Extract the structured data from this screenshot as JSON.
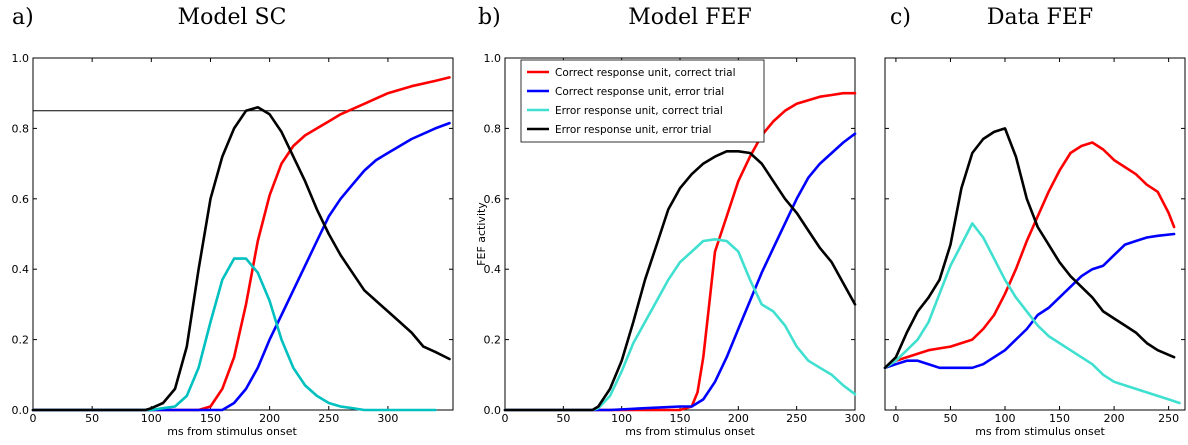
{
  "chart_data": [
    {
      "type": "line",
      "panel_letter": "a)",
      "title": "Model SC",
      "xlabel": "ms from stimulus onset",
      "ylabel": "",
      "xlim": [
        0,
        355
      ],
      "ylim": [
        0,
        1.0
      ],
      "xticks": [
        0,
        50,
        100,
        150,
        200,
        250,
        300
      ],
      "yticks": [
        0.0,
        0.2,
        0.4,
        0.6,
        0.8,
        1.0
      ],
      "ytick_labels": [
        "0.0",
        "0.2",
        "0.4",
        "0.6",
        "0.8",
        "1.0"
      ],
      "hline": 0.85,
      "series": [
        {
          "color": "#ff0000",
          "x": [
            0,
            140,
            150,
            160,
            170,
            180,
            190,
            200,
            210,
            220,
            230,
            240,
            250,
            260,
            280,
            300,
            320,
            340,
            352
          ],
          "y": [
            0,
            0,
            0.01,
            0.06,
            0.15,
            0.3,
            0.48,
            0.61,
            0.7,
            0.75,
            0.78,
            0.8,
            0.82,
            0.84,
            0.87,
            0.9,
            0.92,
            0.935,
            0.945
          ]
        },
        {
          "color": "#0000ff",
          "x": [
            0,
            160,
            170,
            180,
            190,
            200,
            210,
            220,
            230,
            240,
            250,
            260,
            270,
            280,
            290,
            300,
            320,
            340,
            352
          ],
          "y": [
            0,
            0,
            0.02,
            0.06,
            0.12,
            0.2,
            0.27,
            0.34,
            0.41,
            0.48,
            0.55,
            0.6,
            0.64,
            0.68,
            0.71,
            0.73,
            0.77,
            0.8,
            0.815
          ]
        },
        {
          "color": "#00c0c0",
          "x": [
            0,
            100,
            110,
            120,
            130,
            140,
            150,
            160,
            170,
            180,
            190,
            200,
            210,
            220,
            230,
            240,
            250,
            260,
            270,
            280,
            340
          ],
          "y": [
            0,
            0,
            0.005,
            0.01,
            0.04,
            0.12,
            0.25,
            0.37,
            0.43,
            0.43,
            0.39,
            0.31,
            0.2,
            0.12,
            0.07,
            0.04,
            0.02,
            0.01,
            0.005,
            0,
            0
          ]
        },
        {
          "color": "#000000",
          "x": [
            0,
            95,
            100,
            110,
            120,
            130,
            140,
            150,
            160,
            170,
            180,
            190,
            200,
            210,
            220,
            230,
            240,
            250,
            260,
            270,
            280,
            290,
            300,
            310,
            320,
            330,
            340,
            352
          ],
          "y": [
            0,
            0,
            0.005,
            0.02,
            0.06,
            0.18,
            0.4,
            0.6,
            0.72,
            0.8,
            0.85,
            0.86,
            0.84,
            0.79,
            0.72,
            0.65,
            0.57,
            0.5,
            0.44,
            0.39,
            0.34,
            0.31,
            0.28,
            0.25,
            0.22,
            0.18,
            0.165,
            0.145
          ]
        }
      ]
    },
    {
      "type": "line",
      "panel_letter": "b)",
      "title": "Model FEF",
      "xlabel": "ms from stimulus onset",
      "ylabel": "FEF activity",
      "xlim": [
        0,
        300
      ],
      "ylim": [
        0,
        1.0
      ],
      "xticks": [
        0,
        50,
        100,
        150,
        200,
        250,
        300
      ],
      "yticks": [
        0.0,
        0.2,
        0.4,
        0.6,
        0.8,
        1.0
      ],
      "ytick_labels": [
        "0.0",
        "0.2",
        "0.4",
        "0.6",
        "0.8",
        "1.0"
      ],
      "legend_position": "top-left",
      "series": [
        {
          "name": "Correct response unit, correct trial",
          "color": "#ff0000",
          "x": [
            0,
            150,
            160,
            165,
            170,
            175,
            180,
            190,
            200,
            210,
            220,
            230,
            240,
            250,
            260,
            270,
            280,
            290,
            300
          ],
          "y": [
            0,
            0,
            0.01,
            0.05,
            0.15,
            0.3,
            0.45,
            0.55,
            0.65,
            0.72,
            0.78,
            0.82,
            0.85,
            0.87,
            0.88,
            0.89,
            0.895,
            0.9,
            0.9
          ]
        },
        {
          "name": "Correct response unit, error trial",
          "color": "#0000ff",
          "x": [
            0,
            90,
            120,
            150,
            160,
            170,
            180,
            190,
            200,
            210,
            220,
            230,
            240,
            250,
            260,
            270,
            280,
            290,
            300
          ],
          "y": [
            0,
            0,
            0.005,
            0.01,
            0.01,
            0.03,
            0.08,
            0.15,
            0.23,
            0.31,
            0.39,
            0.46,
            0.53,
            0.6,
            0.66,
            0.7,
            0.73,
            0.76,
            0.785
          ]
        },
        {
          "name": "Error response unit, correct trial",
          "color": "#40e0d0",
          "x": [
            0,
            75,
            80,
            90,
            100,
            110,
            120,
            130,
            140,
            150,
            160,
            170,
            180,
            190,
            200,
            210,
            220,
            230,
            240,
            250,
            260,
            270,
            280,
            290,
            300
          ],
          "y": [
            0,
            0,
            0.005,
            0.04,
            0.11,
            0.19,
            0.25,
            0.31,
            0.37,
            0.42,
            0.45,
            0.48,
            0.485,
            0.48,
            0.45,
            0.37,
            0.3,
            0.28,
            0.24,
            0.18,
            0.14,
            0.12,
            0.1,
            0.07,
            0.045
          ]
        },
        {
          "name": "Error response unit, error trial",
          "color": "#000000",
          "x": [
            0,
            75,
            80,
            90,
            100,
            110,
            120,
            130,
            140,
            150,
            160,
            170,
            180,
            190,
            200,
            210,
            220,
            230,
            240,
            250,
            260,
            270,
            280,
            290,
            300
          ],
          "y": [
            0,
            0,
            0.01,
            0.06,
            0.14,
            0.25,
            0.37,
            0.47,
            0.57,
            0.63,
            0.67,
            0.7,
            0.72,
            0.735,
            0.735,
            0.73,
            0.7,
            0.65,
            0.6,
            0.56,
            0.51,
            0.46,
            0.42,
            0.36,
            0.3
          ]
        }
      ]
    },
    {
      "type": "line",
      "panel_letter": "c)",
      "title": "Data FEF",
      "xlabel": "ms from stimulus onset",
      "ylabel": "",
      "xlim": [
        -10,
        265
      ],
      "ylim": [
        0,
        1.0
      ],
      "xticks": [
        0,
        50,
        100,
        150,
        200,
        250
      ],
      "yticks": [
        0.0,
        0.2,
        0.4,
        0.6,
        0.8,
        1.0
      ],
      "ytick_labels": [
        "",
        "",
        "",
        "",
        "",
        ""
      ],
      "series": [
        {
          "color": "#ff0000",
          "x": [
            -10,
            0,
            10,
            20,
            30,
            40,
            50,
            60,
            70,
            80,
            90,
            100,
            110,
            120,
            130,
            140,
            150,
            160,
            170,
            180,
            190,
            200,
            210,
            220,
            230,
            240,
            250,
            255
          ],
          "y": [
            0.12,
            0.14,
            0.15,
            0.16,
            0.17,
            0.175,
            0.18,
            0.19,
            0.2,
            0.23,
            0.27,
            0.33,
            0.4,
            0.48,
            0.55,
            0.62,
            0.68,
            0.73,
            0.75,
            0.76,
            0.74,
            0.71,
            0.69,
            0.67,
            0.64,
            0.62,
            0.56,
            0.52
          ]
        },
        {
          "color": "#0000ff",
          "x": [
            -10,
            0,
            10,
            20,
            30,
            40,
            50,
            60,
            70,
            80,
            90,
            100,
            110,
            120,
            130,
            140,
            150,
            160,
            170,
            180,
            190,
            200,
            210,
            220,
            230,
            240,
            255
          ],
          "y": [
            0.12,
            0.13,
            0.14,
            0.14,
            0.13,
            0.12,
            0.12,
            0.12,
            0.12,
            0.13,
            0.15,
            0.17,
            0.2,
            0.23,
            0.27,
            0.29,
            0.32,
            0.35,
            0.38,
            0.4,
            0.41,
            0.44,
            0.47,
            0.48,
            0.49,
            0.495,
            0.5
          ]
        },
        {
          "color": "#40e0d0",
          "x": [
            -10,
            0,
            10,
            20,
            30,
            40,
            50,
            60,
            70,
            80,
            90,
            100,
            110,
            120,
            130,
            140,
            150,
            160,
            170,
            180,
            190,
            200,
            210,
            220,
            230,
            240,
            250,
            260
          ],
          "y": [
            0.12,
            0.14,
            0.17,
            0.2,
            0.25,
            0.33,
            0.41,
            0.47,
            0.53,
            0.49,
            0.43,
            0.37,
            0.32,
            0.28,
            0.24,
            0.21,
            0.19,
            0.17,
            0.15,
            0.13,
            0.1,
            0.08,
            0.07,
            0.06,
            0.05,
            0.04,
            0.03,
            0.02
          ]
        },
        {
          "color": "#000000",
          "x": [
            -10,
            0,
            10,
            20,
            30,
            40,
            50,
            60,
            70,
            80,
            90,
            100,
            110,
            120,
            130,
            140,
            150,
            160,
            170,
            180,
            190,
            200,
            210,
            220,
            230,
            240,
            255
          ],
          "y": [
            0.12,
            0.15,
            0.22,
            0.28,
            0.32,
            0.37,
            0.47,
            0.63,
            0.73,
            0.77,
            0.79,
            0.8,
            0.72,
            0.6,
            0.52,
            0.47,
            0.42,
            0.38,
            0.35,
            0.32,
            0.28,
            0.26,
            0.24,
            0.22,
            0.19,
            0.17,
            0.15
          ]
        }
      ]
    }
  ]
}
